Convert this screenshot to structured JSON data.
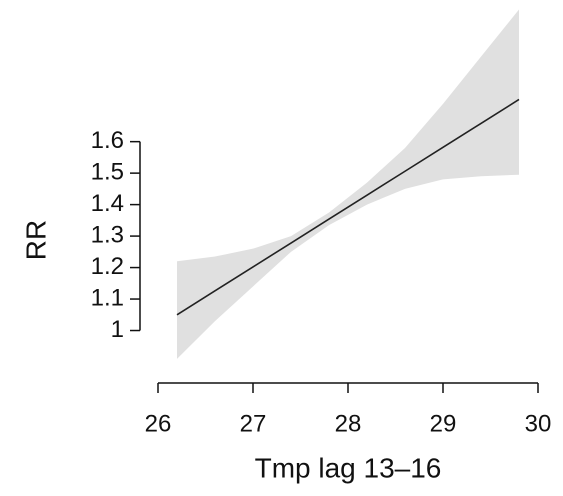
{
  "chart_data": {
    "type": "line",
    "x_label": "Tmp lag 13–16",
    "y_label": "RR",
    "x": [
      26.2,
      26.6,
      27,
      27.4,
      27.8,
      28.2,
      28.6,
      29,
      29.4,
      29.8
    ],
    "series": [
      {
        "color": "#222222",
        "band_color": "#e0e0e0",
        "values": [
          1.05,
          1.126,
          1.202,
          1.278,
          1.354,
          1.43,
          1.506,
          1.582,
          1.658,
          1.734
        ],
        "lower": [
          0.91,
          1.03,
          1.14,
          1.25,
          1.335,
          1.4,
          1.45,
          1.48,
          1.49,
          1.495
        ],
        "upper": [
          1.22,
          1.235,
          1.26,
          1.3,
          1.375,
          1.47,
          1.58,
          1.72,
          1.87,
          2.02
        ]
      }
    ],
    "xlim": [
      26,
      30
    ],
    "xticks": [
      26,
      27,
      28,
      29,
      30
    ],
    "ylim": [
      0.9,
      2.05
    ],
    "yticks": [
      1,
      1.1,
      1.2,
      1.3,
      1.4,
      1.5,
      1.6
    ]
  }
}
